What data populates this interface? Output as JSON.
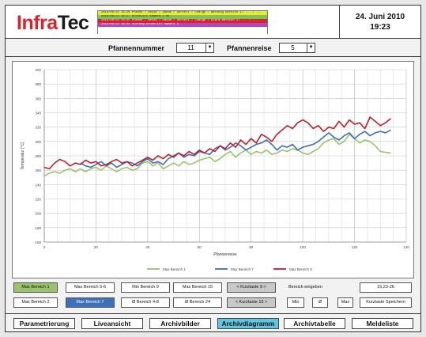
{
  "app": {
    "logo_part1": "Infra",
    "logo_part2": "Tec",
    "date": "24. Juni 2010",
    "time": "19:23"
  },
  "messages": [
    {
      "text": "2010/06/24 18:28   Pfanne / Reise / Datum / Uhrzeit / Charge / Warnung Bereich 17 ... / ...",
      "color": "#e9e93a"
    },
    {
      "text": "2010/06/24 18:17   Drucklift Kamera 1 OK",
      "color": "#7fc455"
    },
    {
      "text": "2010/06/24 18:45   Pfanne / Reise / Datum / Uhrzeit / Charge / Alarm Bereich 17 ... / ...",
      "color": "#d8232a"
    },
    {
      "text": "2010/06/24 18:04   Störung Drucklift Kamera 1",
      "color": "#b04ab8"
    }
  ],
  "selectors": {
    "pfannennummer_label": "Pfannennummer",
    "pfannennummer_value": "11",
    "pfannenreise_label": "Pfannenreise",
    "pfannenreise_value": "5"
  },
  "chart_data": {
    "type": "line",
    "xlabel": "Pfannenreise",
    "ylabel": "Temperatur [°C]",
    "xlim": [
      0,
      140
    ],
    "ylim": [
      160,
      400
    ],
    "x_ticks": [
      "0",
      "20",
      "40",
      "60",
      "80",
      "100",
      "120",
      "140"
    ],
    "y_ticks": [
      "160",
      "180",
      "200",
      "220",
      "240",
      "260",
      "280",
      "300",
      "320",
      "340",
      "360",
      "380",
      "400"
    ],
    "grid": true,
    "legend_position": "bottom",
    "series": [
      {
        "name": "Max Bereich 1",
        "color": "#9bc36b",
        "x": [
          0,
          2,
          4,
          6,
          8,
          10,
          12,
          14,
          16,
          18,
          20,
          22,
          24,
          26,
          28,
          30,
          32,
          34,
          36,
          38,
          40,
          42,
          44,
          46,
          48,
          50,
          52,
          54,
          56,
          58,
          60,
          62,
          64,
          66,
          68,
          70,
          72,
          74,
          76,
          78,
          80,
          82,
          84,
          86,
          88,
          90,
          92,
          94,
          96,
          98,
          100,
          102,
          104,
          106,
          108,
          110,
          112,
          114,
          116,
          118,
          120,
          122,
          124,
          126,
          128,
          130,
          132,
          134
        ],
        "y": [
          252,
          256,
          258,
          256,
          260,
          262,
          258,
          262,
          258,
          262,
          264,
          260,
          266,
          262,
          258,
          262,
          264,
          260,
          262,
          270,
          272,
          266,
          270,
          262,
          266,
          270,
          266,
          272,
          268,
          270,
          274,
          276,
          278,
          272,
          276,
          282,
          286,
          278,
          284,
          288,
          282,
          286,
          284,
          288,
          282,
          284,
          288,
          286,
          290,
          288,
          284,
          282,
          286,
          290,
          298,
          302,
          304,
          296,
          300,
          310,
          304,
          298,
          302,
          300,
          294,
          286,
          285,
          284
        ]
      },
      {
        "name": "Max Bereich 7",
        "color": "#3c70b8",
        "x": [
          14,
          16,
          18,
          20,
          22,
          24,
          26,
          28,
          30,
          32,
          34,
          36,
          38,
          40,
          42,
          44,
          46,
          48,
          50,
          52,
          54,
          56,
          58,
          60,
          62,
          64,
          66,
          68,
          70,
          72,
          74,
          76,
          78,
          80,
          82,
          84,
          86,
          88,
          90,
          92,
          94,
          96,
          98,
          100,
          102,
          104,
          106,
          108,
          110,
          112,
          114,
          116,
          118,
          120,
          122,
          124,
          126,
          128,
          130,
          132,
          134
        ],
        "y": [
          270,
          266,
          264,
          268,
          272,
          266,
          270,
          264,
          268,
          272,
          270,
          266,
          272,
          276,
          270,
          272,
          268,
          276,
          280,
          284,
          278,
          282,
          280,
          286,
          284,
          282,
          290,
          294,
          288,
          292,
          298,
          294,
          288,
          292,
          296,
          298,
          302,
          296,
          288,
          294,
          292,
          296,
          288,
          292,
          294,
          296,
          300,
          306,
          312,
          306,
          302,
          308,
          312,
          304,
          310,
          314,
          308,
          312,
          314,
          312,
          316
        ]
      },
      {
        "name": "Max Bereich 9",
        "color": "#c0202a",
        "x": [
          0,
          2,
          4,
          6,
          8,
          10,
          12,
          14,
          16,
          18,
          20,
          22,
          24,
          26,
          28,
          30,
          32,
          34,
          36,
          38,
          40,
          42,
          44,
          46,
          48,
          50,
          52,
          54,
          56,
          58,
          60,
          62,
          64,
          66,
          68,
          70,
          72,
          74,
          76,
          78,
          80,
          82,
          84,
          86,
          88,
          90,
          92,
          94,
          96,
          98,
          100,
          102,
          104,
          106,
          108,
          110,
          112,
          114,
          116,
          118,
          120,
          122,
          124,
          126,
          128,
          130,
          132,
          134
        ],
        "y": [
          264,
          262,
          270,
          275,
          272,
          266,
          270,
          268,
          274,
          270,
          272,
          266,
          268,
          272,
          275,
          270,
          272,
          266,
          270,
          274,
          278,
          274,
          280,
          276,
          282,
          278,
          284,
          280,
          286,
          282,
          288,
          284,
          290,
          286,
          294,
          290,
          298,
          292,
          302,
          296,
          304,
          298,
          310,
          306,
          300,
          310,
          316,
          322,
          318,
          326,
          330,
          326,
          318,
          322,
          314,
          320,
          318,
          328,
          320,
          330,
          324,
          326,
          318,
          334,
          328,
          322,
          326,
          332
        ]
      }
    ]
  },
  "buttons": {
    "max1": "Max Bereich 1",
    "max56": "Max Bereich 5-6",
    "min9": "Min Bereich 9",
    "max15": "Max Bereich 15",
    "kurz9": "< Kurztaste 9 >",
    "max2": "Max Bereich 2",
    "max7": "Max Bereich 7",
    "avg48": "Ø Bereich 4-8",
    "avg24": "Ø Bereich 24",
    "kurz10": "< Kurztaste 10 >",
    "bereich_label": "Bereich eingeben",
    "bereich_value": "15,23-26",
    "min": "Min",
    "avg": "Ø",
    "max": "Max",
    "kurz_speichern": "Kurztaste Speichern"
  },
  "nav": {
    "items": [
      "Parametrierung",
      "Liveansicht",
      "Archivbilder",
      "Archivdiagramm",
      "Archivtabelle",
      "Meldeliste"
    ],
    "active": "Archivdiagramm"
  }
}
